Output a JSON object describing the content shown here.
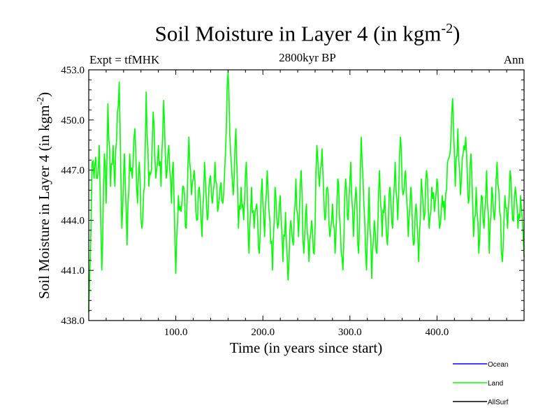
{
  "header": {
    "title_main": "Soil Moisture in Layer 4 (in kgm",
    "title_sup": "-2",
    "title_end": ")",
    "subtitle": "2800kyr BP",
    "experiment": "Expt = tfMHK",
    "season": "Ann"
  },
  "chart_data": {
    "type": "line",
    "title": "Soil Moisture in Layer 4 (in kgm-2)",
    "subtitle": "2800kyr BP",
    "xlabel": "Time (in years since start)",
    "ylabel_main": "Soil Moisture in Layer 4 (in kgm",
    "ylabel_sup": "-2",
    "ylabel_end": ")",
    "xlim": [
      0,
      500
    ],
    "ylim": [
      438.0,
      453.0
    ],
    "x_ticks": [
      100,
      200,
      300,
      400
    ],
    "x_tick_labels": [
      "100.0",
      "200.0",
      "300.0",
      "400.0"
    ],
    "y_ticks": [
      438,
      441,
      444,
      447,
      450,
      453
    ],
    "y_tick_labels": [
      "438.0",
      "441.0",
      "444.0",
      "447.0",
      "450.0",
      "453.0"
    ],
    "legend": [
      {
        "name": "Ocean",
        "color": "#0000ff"
      },
      {
        "name": "Land",
        "color": "#00ff00"
      },
      {
        "name": "AllSurf",
        "color": "#000000"
      }
    ],
    "series": [
      {
        "name": "Land",
        "color": "#00ff00",
        "anchors": [
          [
            0,
            438.5
          ],
          [
            2,
            442.0
          ],
          [
            4,
            447.5
          ],
          [
            6,
            446.5
          ],
          [
            8,
            447.8
          ],
          [
            10,
            446.5
          ],
          [
            12,
            448.5
          ],
          [
            15,
            441.0
          ],
          [
            18,
            448.0
          ],
          [
            20,
            445.0
          ],
          [
            22,
            451.0
          ],
          [
            25,
            446.0
          ],
          [
            28,
            448.5
          ],
          [
            30,
            446.0
          ],
          [
            33,
            450.5
          ],
          [
            35,
            452.3
          ],
          [
            38,
            443.5
          ],
          [
            41,
            448.0
          ],
          [
            44,
            442.5
          ],
          [
            47,
            448.0
          ],
          [
            50,
            446.5
          ],
          [
            53,
            449.5
          ],
          [
            56,
            445.0
          ],
          [
            58,
            447.5
          ],
          [
            61,
            443.5
          ],
          [
            64,
            446.0
          ],
          [
            66,
            451.7
          ],
          [
            69,
            446.0
          ],
          [
            72,
            447.0
          ],
          [
            74,
            450.5
          ],
          [
            77,
            446.5
          ],
          [
            80,
            448.5
          ],
          [
            83,
            446.0
          ],
          [
            86,
            451.2
          ],
          [
            89,
            446.5
          ],
          [
            92,
            448.5
          ],
          [
            95,
            445.0
          ],
          [
            97,
            447.5
          ],
          [
            100,
            440.8
          ],
          [
            103,
            445.5
          ],
          [
            106,
            444.5
          ],
          [
            109,
            446.0
          ],
          [
            112,
            443.5
          ],
          [
            115,
            449.0
          ],
          [
            118,
            445.5
          ],
          [
            121,
            447.0
          ],
          [
            124,
            444.0
          ],
          [
            127,
            446.0
          ],
          [
            130,
            443.0
          ],
          [
            133,
            447.5
          ],
          [
            136,
            444.0
          ],
          [
            139,
            446.5
          ],
          [
            142,
            445.0
          ],
          [
            145,
            447.5
          ],
          [
            148,
            444.5
          ],
          [
            151,
            446.0
          ],
          [
            154,
            445.0
          ],
          [
            157,
            448.0
          ],
          [
            160,
            452.9
          ],
          [
            163,
            448.0
          ],
          [
            166,
            445.5
          ],
          [
            169,
            449.5
          ],
          [
            172,
            443.5
          ],
          [
            175,
            446.0
          ],
          [
            178,
            444.0
          ],
          [
            181,
            447.5
          ],
          [
            184,
            442.0
          ],
          [
            187,
            446.0
          ],
          [
            190,
            443.5
          ],
          [
            193,
            445.0
          ],
          [
            196,
            442.0
          ],
          [
            199,
            446.5
          ],
          [
            202,
            443.0
          ],
          [
            205,
            447.0
          ],
          [
            208,
            444.0
          ],
          [
            211,
            441.0
          ],
          [
            214,
            446.0
          ],
          [
            217,
            443.5
          ],
          [
            220,
            445.5
          ],
          [
            223,
            441.5
          ],
          [
            226,
            444.5
          ],
          [
            229,
            440.4
          ],
          [
            232,
            444.0
          ],
          [
            235,
            442.5
          ],
          [
            238,
            446.5
          ],
          [
            241,
            443.0
          ],
          [
            244,
            447.0
          ],
          [
            247,
            442.0
          ],
          [
            250,
            445.0
          ],
          [
            253,
            441.5
          ],
          [
            256,
            444.0
          ],
          [
            259,
            442.0
          ],
          [
            262,
            448.5
          ],
          [
            265,
            446.0
          ],
          [
            268,
            448.3
          ],
          [
            271,
            444.0
          ],
          [
            274,
            446.0
          ],
          [
            277,
            443.0
          ],
          [
            280,
            445.0
          ],
          [
            283,
            442.0
          ],
          [
            286,
            446.5
          ],
          [
            289,
            443.5
          ],
          [
            292,
            441.0
          ],
          [
            295,
            446.5
          ],
          [
            298,
            444.0
          ],
          [
            301,
            447.5
          ],
          [
            304,
            443.0
          ],
          [
            307,
            446.0
          ],
          [
            310,
            442.0
          ],
          [
            313,
            449.0
          ],
          [
            316,
            445.0
          ],
          [
            319,
            441.0
          ],
          [
            322,
            446.0
          ],
          [
            325,
            440.5
          ],
          [
            328,
            444.0
          ],
          [
            331,
            442.0
          ],
          [
            334,
            447.0
          ],
          [
            337,
            443.0
          ],
          [
            340,
            445.5
          ],
          [
            343,
            442.5
          ],
          [
            346,
            446.0
          ],
          [
            349,
            443.5
          ],
          [
            352,
            447.5
          ],
          [
            355,
            444.0
          ],
          [
            358,
            449.0
          ],
          [
            361,
            445.5
          ],
          [
            364,
            447.0
          ],
          [
            367,
            443.0
          ],
          [
            370,
            446.0
          ],
          [
            373,
            442.5
          ],
          [
            376,
            445.0
          ],
          [
            379,
            441.5
          ],
          [
            382,
            446.5
          ],
          [
            385,
            444.0
          ],
          [
            388,
            447.0
          ],
          [
            391,
            443.5
          ],
          [
            394,
            446.0
          ],
          [
            397,
            444.5
          ],
          [
            400,
            446.5
          ],
          [
            403,
            443.5
          ],
          [
            406,
            445.5
          ],
          [
            409,
            444.0
          ],
          [
            412,
            447.5
          ],
          [
            415,
            448.0
          ],
          [
            418,
            451.3
          ],
          [
            421,
            446.0
          ],
          [
            424,
            449.5
          ],
          [
            427,
            445.5
          ],
          [
            430,
            448.0
          ],
          [
            433,
            449.0
          ],
          [
            436,
            445.0
          ],
          [
            439,
            448.0
          ],
          [
            442,
            443.0
          ],
          [
            445,
            446.0
          ],
          [
            448,
            442.0
          ],
          [
            451,
            445.5
          ],
          [
            454,
            443.5
          ],
          [
            457,
            447.0
          ],
          [
            460,
            442.0
          ],
          [
            463,
            446.0
          ],
          [
            466,
            444.0
          ],
          [
            469,
            447.5
          ],
          [
            472,
            444.5
          ],
          [
            475,
            441.5
          ],
          [
            478,
            445.5
          ],
          [
            481,
            443.5
          ],
          [
            484,
            447.0
          ],
          [
            487,
            444.0
          ],
          [
            490,
            446.0
          ],
          [
            493,
            443.5
          ],
          [
            496,
            445.5
          ],
          [
            499,
            443.0
          ],
          [
            500,
            441.8
          ]
        ]
      }
    ]
  }
}
